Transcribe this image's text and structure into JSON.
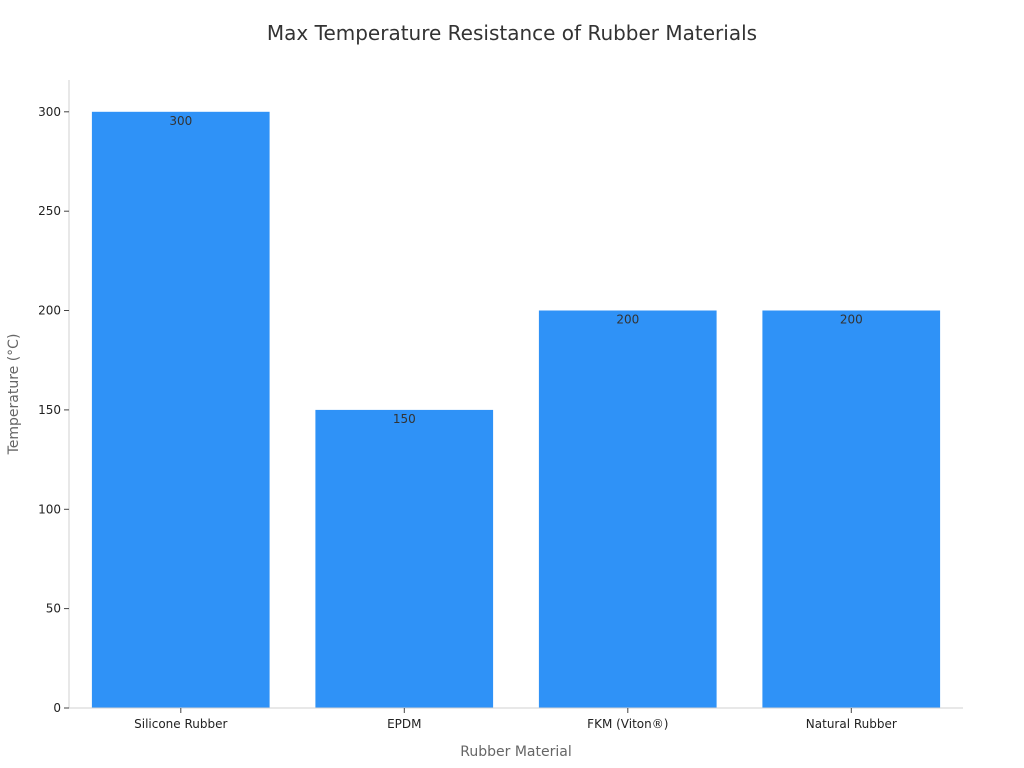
{
  "chart_data": {
    "type": "bar",
    "title": "Max Temperature Resistance of Rubber Materials",
    "xlabel": "Rubber Material",
    "ylabel": "Temperature (°C)",
    "categories": [
      "Silicone Rubber",
      "EPDM",
      "FKM (Viton®)",
      "Natural Rubber"
    ],
    "values": [
      300,
      150,
      200,
      200
    ],
    "yticks": [
      0,
      50,
      100,
      150,
      200,
      250,
      300
    ],
    "ylim": [
      0,
      316
    ],
    "grid": false,
    "legend": "none",
    "bar_color": "#2f92f7",
    "data_labels": true
  }
}
